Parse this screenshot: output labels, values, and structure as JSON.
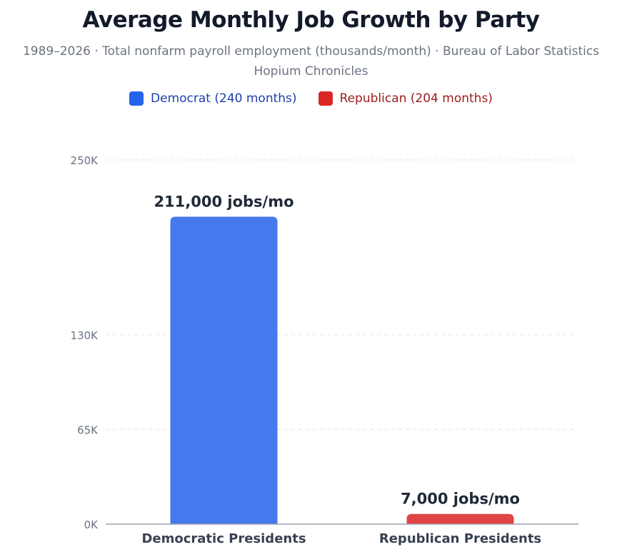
{
  "chart_data": {
    "type": "bar",
    "title": "Average Monthly Job Growth by Party",
    "subtitle": "1989–2026 · Total nonfarm payroll employment (thousands/month) · Bureau of Labor Statistics",
    "source_credit": "Hopium Chronicles",
    "categories": [
      "Democratic Presidents",
      "Republican Presidents"
    ],
    "values": [
      211,
      7
    ],
    "value_unit": "thousand jobs/month",
    "data_labels": [
      "211,000 jobs/mo",
      "7,000 jobs/mo"
    ],
    "legend": [
      {
        "label": "Democrat (240 months)",
        "color": "#2563eb",
        "text_color": "#1e40af"
      },
      {
        "label": "Republican (204 months)",
        "color": "#dc2626",
        "text_color": "#991b1b"
      }
    ],
    "bar_colors": [
      "#4679ee",
      "#e04343"
    ],
    "yticks": [
      0,
      65,
      130,
      250
    ],
    "ytick_labels": [
      "0K",
      "65K",
      "130K",
      "250K"
    ],
    "ylim": [
      0,
      250
    ],
    "xlabel": "",
    "ylabel": "",
    "grid": true,
    "legend_position": "top-center"
  }
}
